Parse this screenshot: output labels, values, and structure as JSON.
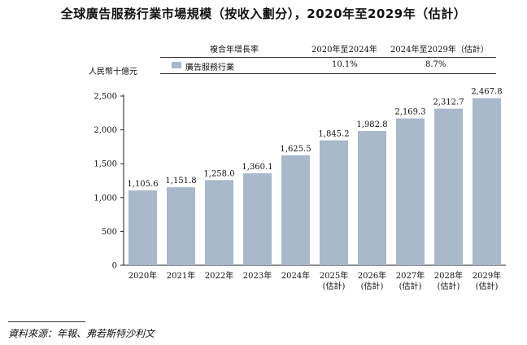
{
  "title": "全球廣告服務行業市場規模（按收入劃分），2020年至2029年（估計）",
  "table": {
    "header_label": "複合年增長率",
    "col1_header": "2020年至2024年",
    "col2_header": "2024年至2029年（估計）",
    "row_label": "廣告服務行業",
    "col1_value": "10.1%",
    "col2_value": "8.7%"
  },
  "unit_label": "人民幣十億元",
  "source": "資料來源：年報、弗若斯特沙利文",
  "chart_data": {
    "type": "bar",
    "categories": [
      "2020年",
      "2021年",
      "2022年",
      "2023年",
      "2024年",
      "2025年\n(估計)",
      "2026年\n(估計)",
      "2027年\n(估計)",
      "2028年\n(估計)",
      "2029年\n(估計)"
    ],
    "series": [
      {
        "name": "廣告服務行業",
        "values": [
          1105.6,
          1151.8,
          1258.0,
          1360.1,
          1625.5,
          1845.2,
          1982.8,
          2169.3,
          2312.7,
          2467.8
        ],
        "labels": [
          "1,105.6",
          "1,151.8",
          "1,258.0",
          "1,360.1",
          "1,625.5",
          "1,845.2",
          "1,982.8",
          "2,169.3",
          "2,312.7",
          "2,467.8"
        ]
      }
    ],
    "ylim": [
      0,
      2500
    ],
    "yticks": [
      0,
      500,
      1000,
      1500,
      2000,
      2500
    ],
    "ytick_labels": [
      "0",
      "500",
      "1,000",
      "1,500",
      "2,000",
      "2,500"
    ],
    "bar_color": "#a9b8cb",
    "grid": false
  }
}
